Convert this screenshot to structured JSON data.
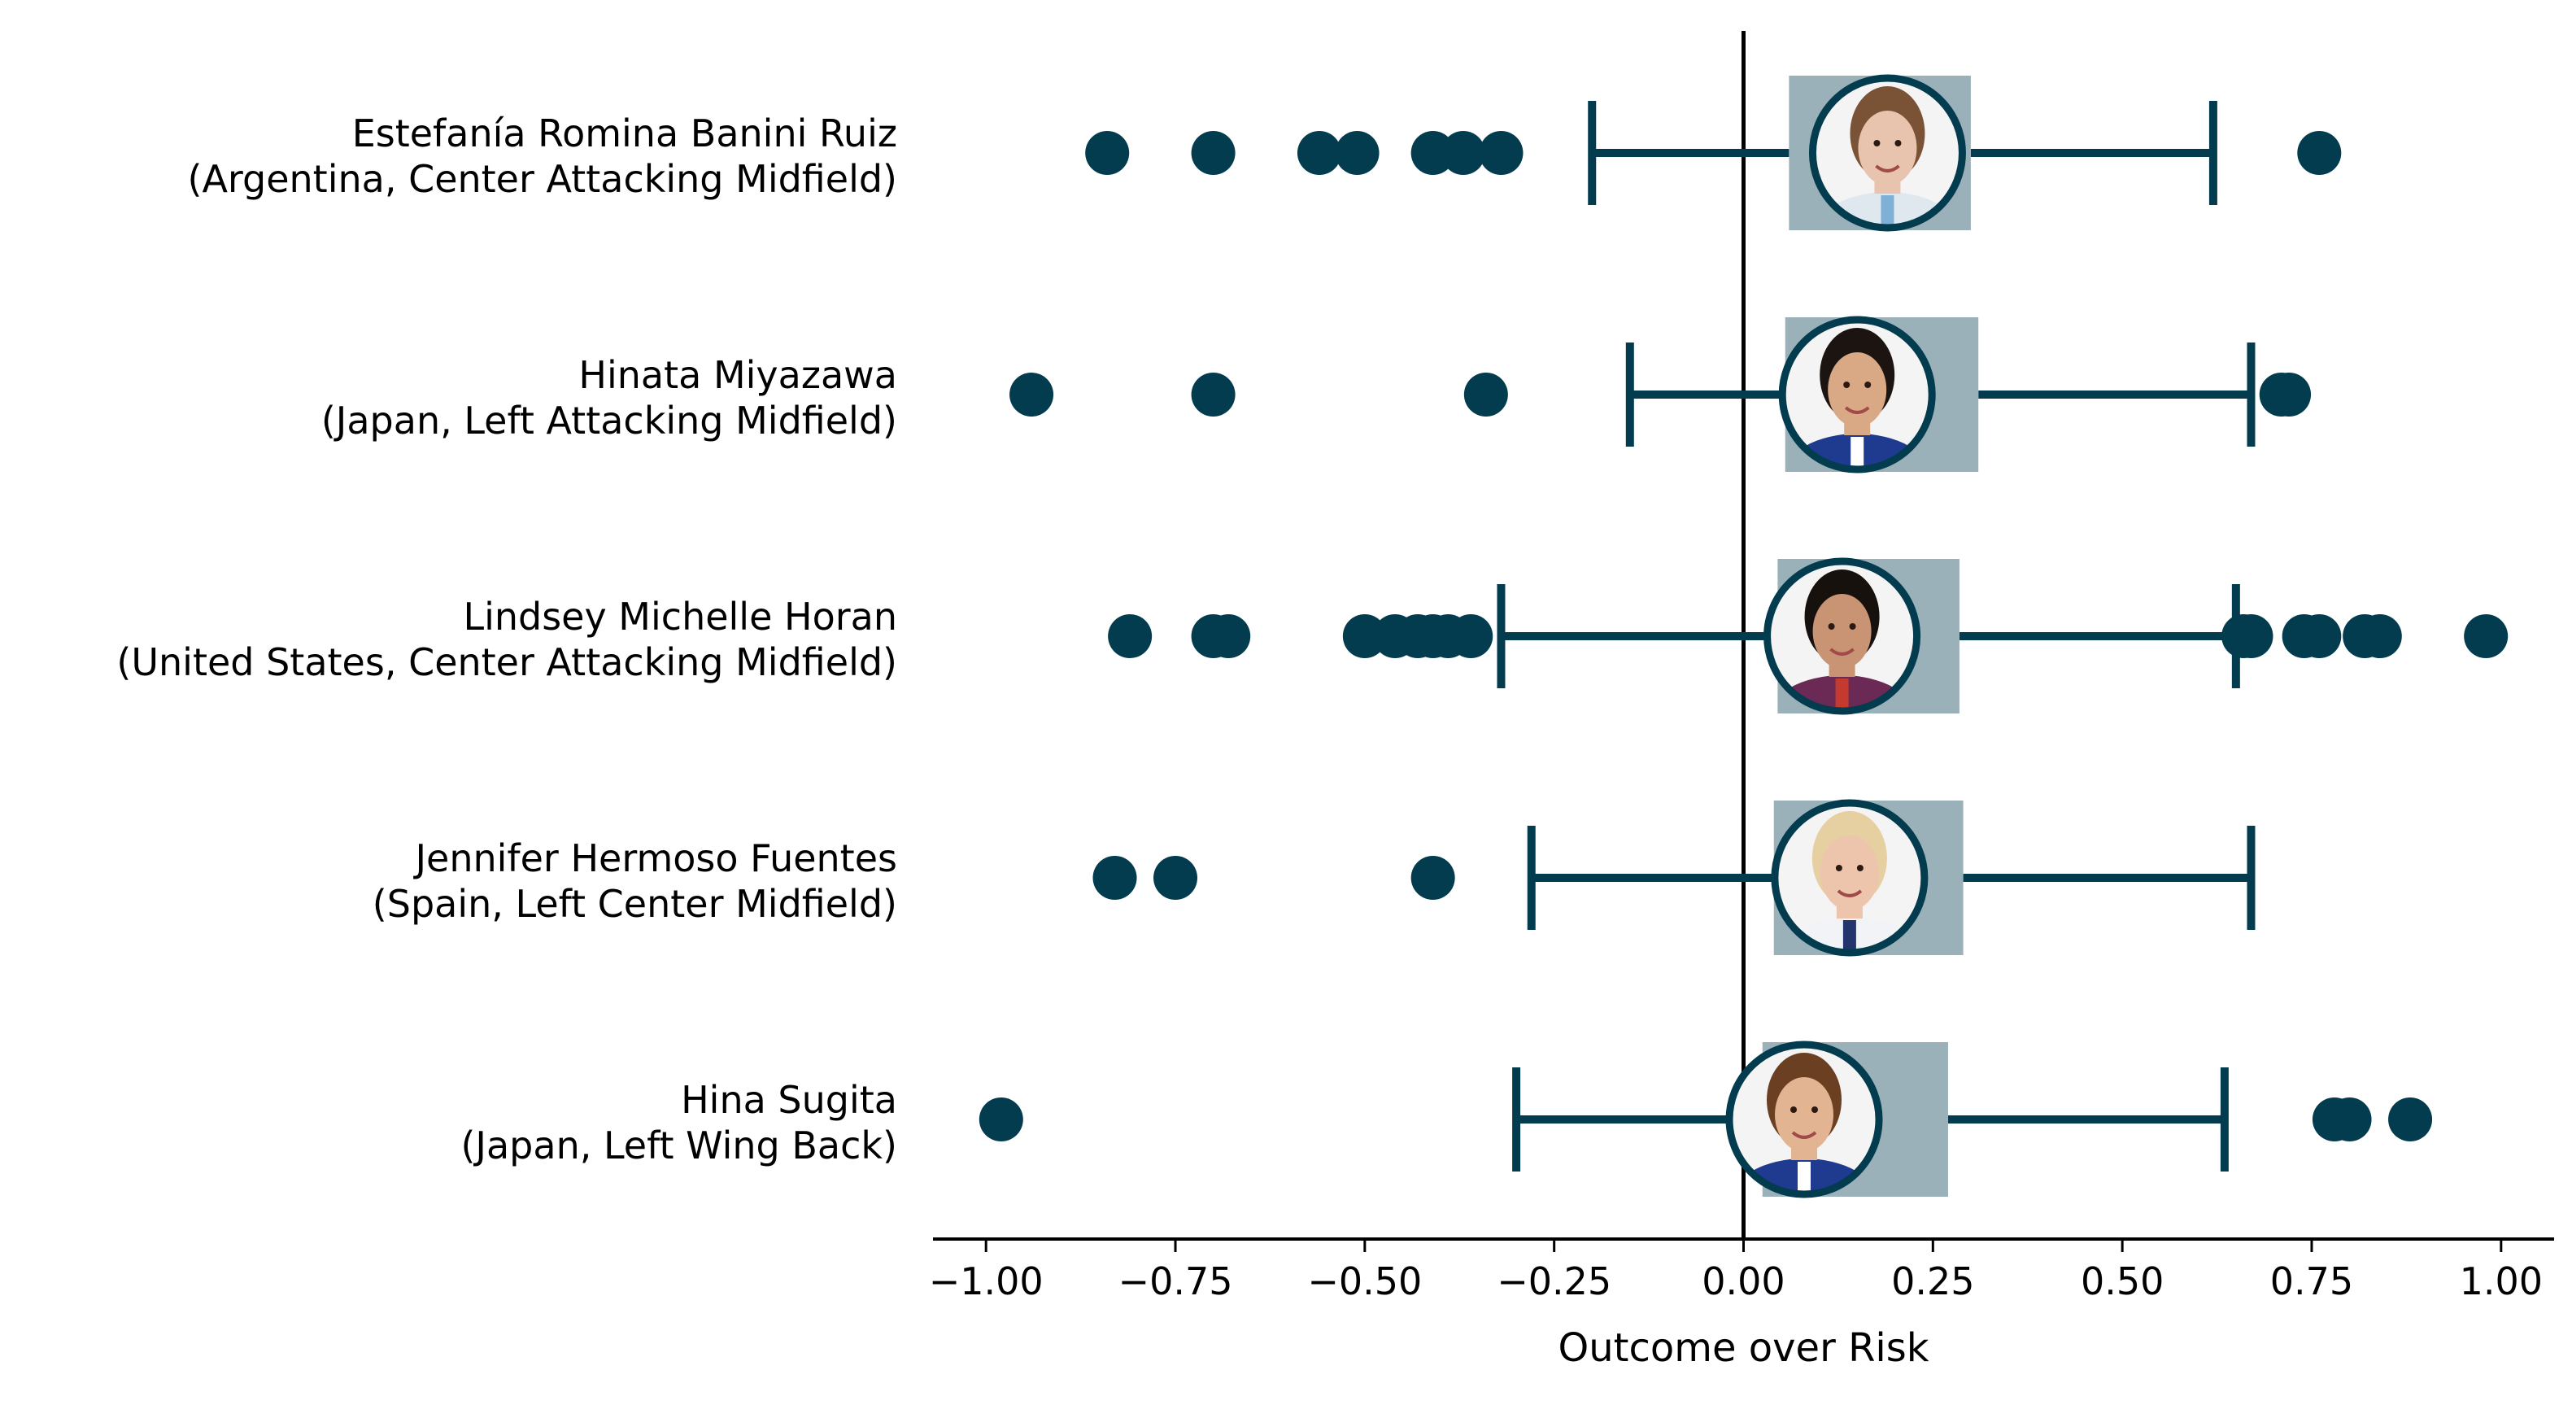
{
  "chart_data": {
    "type": "boxplot",
    "xlabel": "Outcome over Risk",
    "xlim": [
      -1.07,
      1.07
    ],
    "xticks": [
      -1.0,
      -0.75,
      -0.5,
      -0.25,
      0.0,
      0.25,
      0.5,
      0.75,
      1.0
    ],
    "xtick_labels": [
      "−1.00",
      "−0.75",
      "−0.50",
      "−0.25",
      "0.00",
      "0.25",
      "0.50",
      "0.75",
      "1.00"
    ],
    "reference_line_x": 0.0,
    "colors": {
      "primary": "#033c4f",
      "box": "#9ab1b9",
      "axis": "#000000"
    },
    "players": [
      {
        "name": "Estefanía Romina Banini Ruiz",
        "detail": "(Argentina, Center Attacking Midfield)",
        "box": [
          0.06,
          0.3
        ],
        "median": 0.19,
        "whiskers": [
          -0.2,
          0.62
        ],
        "outliers": [
          -0.84,
          -0.7,
          -0.56,
          -0.51,
          -0.41,
          -0.37,
          -0.32,
          0.76
        ],
        "face": {
          "skin": "#e8c3ad",
          "hair": "#7a5236",
          "shirt": "#dfe8ef",
          "stripe": "#7fb0d6"
        }
      },
      {
        "name": "Hinata Miyazawa",
        "detail": "(Japan, Left Attacking Midfield)",
        "box": [
          0.055,
          0.31
        ],
        "median": 0.15,
        "whiskers": [
          -0.15,
          0.67
        ],
        "outliers": [
          -0.94,
          -0.7,
          -0.34,
          0.71,
          0.72
        ],
        "face": {
          "skin": "#d9a885",
          "hair": "#1c1410",
          "shirt": "#1f3b8f",
          "stripe": "#ffffff"
        }
      },
      {
        "name": "Lindsey Michelle Horan",
        "detail": "(United States, Center Attacking Midfield)",
        "box": [
          0.045,
          0.285
        ],
        "median": 0.13,
        "whiskers": [
          -0.32,
          0.65
        ],
        "outliers": [
          -0.81,
          -0.7,
          -0.68,
          -0.5,
          -0.46,
          -0.43,
          -0.41,
          -0.39,
          -0.36,
          0.66,
          0.67,
          0.74,
          0.76,
          0.82,
          0.84,
          0.98
        ],
        "face": {
          "skin": "#c99474",
          "hair": "#17110e",
          "shirt": "#6b2a55",
          "stripe": "#c53a2e"
        }
      },
      {
        "name": "Jennifer Hermoso Fuentes",
        "detail": "(Spain, Left Center Midfield)",
        "box": [
          0.04,
          0.29
        ],
        "median": 0.14,
        "whiskers": [
          -0.28,
          0.67
        ],
        "outliers": [
          -0.83,
          -0.75,
          -0.41
        ],
        "face": {
          "skin": "#edc5ad",
          "hair": "#e6cfa0",
          "shirt": "#f2f3f7",
          "stripe": "#24356e"
        }
      },
      {
        "name": "Hina Sugita",
        "detail": "(Japan, Left Wing Back)",
        "box": [
          0.025,
          0.27
        ],
        "median": 0.08,
        "whiskers": [
          -0.3,
          0.635
        ],
        "outliers": [
          -0.98,
          0.78,
          0.8,
          0.88
        ],
        "face": {
          "skin": "#e2b491",
          "hair": "#6a3f22",
          "shirt": "#1f3b8f",
          "stripe": "#ffffff"
        }
      }
    ]
  }
}
